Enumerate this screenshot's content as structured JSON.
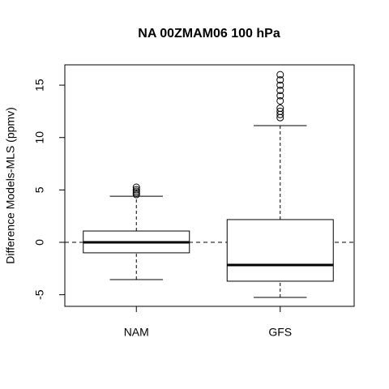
{
  "chart_data": {
    "type": "boxplot",
    "title": "NA 00ZMAM06 100 hPa",
    "ylabel": "Difference Models-MLS (ppmv)",
    "categories": [
      "NAM",
      "GFS"
    ],
    "boxes": [
      {
        "whislo": -3.56,
        "q1": -1.0,
        "med": 0,
        "q3": 1.08,
        "whishi": 4.4,
        "fliers": [
          4.56,
          4.72,
          4.87,
          5.03,
          5.26
        ]
      },
      {
        "whislo": -5.26,
        "q1": -3.71,
        "med": -2.17,
        "q3": 2.17,
        "whishi": 11.14,
        "fliers": [
          11.9,
          12.2,
          12.5,
          12.8,
          13.5,
          14.0,
          14.5,
          15.0,
          15.5,
          16.0
        ]
      }
    ],
    "hline": 0,
    "ylim": [
      -6.11,
      16.94
    ],
    "yticks": [
      -5,
      0,
      5,
      10,
      15
    ]
  }
}
